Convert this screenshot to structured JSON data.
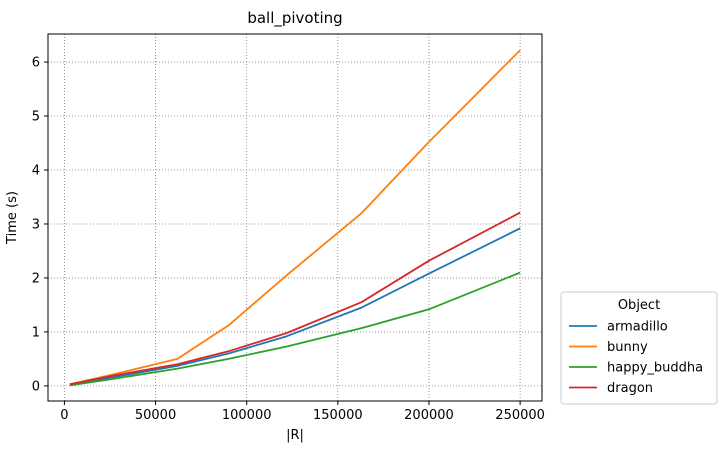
{
  "chart_data": {
    "type": "line",
    "title": "ball_pivoting",
    "xlabel": "|R|",
    "ylabel": "Time (s)",
    "xlim": [
      -9000,
      262000
    ],
    "ylim": [
      -0.28,
      6.52
    ],
    "xticks": [
      0,
      50000,
      100000,
      150000,
      200000,
      250000
    ],
    "yticks": [
      0,
      1,
      2,
      3,
      4,
      5,
      6
    ],
    "grid": true,
    "legend": {
      "title": "Object",
      "placement": "outside-lower-right"
    },
    "series": [
      {
        "name": "armadillo",
        "color": "#1f77b4",
        "x": [
          3000,
          25000,
          62000,
          90000,
          122000,
          163000,
          200000,
          250000
        ],
        "y": [
          0.02,
          0.15,
          0.37,
          0.6,
          0.92,
          1.45,
          2.08,
          2.92
        ]
      },
      {
        "name": "bunny",
        "color": "#ff7f0e",
        "x": [
          3000,
          25000,
          62000,
          90000,
          122000,
          163000,
          200000,
          250000
        ],
        "y": [
          0.03,
          0.2,
          0.5,
          1.12,
          2.05,
          3.2,
          4.52,
          6.22
        ]
      },
      {
        "name": "happy_buddha",
        "color": "#2ca02c",
        "x": [
          3000,
          25000,
          62000,
          90000,
          122000,
          163000,
          200000,
          250000
        ],
        "y": [
          0.01,
          0.12,
          0.32,
          0.5,
          0.73,
          1.07,
          1.42,
          2.1
        ]
      },
      {
        "name": "dragon",
        "color": "#d62728",
        "x": [
          3000,
          25000,
          62000,
          90000,
          122000,
          163000,
          200000,
          250000
        ],
        "y": [
          0.03,
          0.18,
          0.4,
          0.64,
          0.98,
          1.55,
          2.32,
          3.21
        ]
      }
    ]
  }
}
